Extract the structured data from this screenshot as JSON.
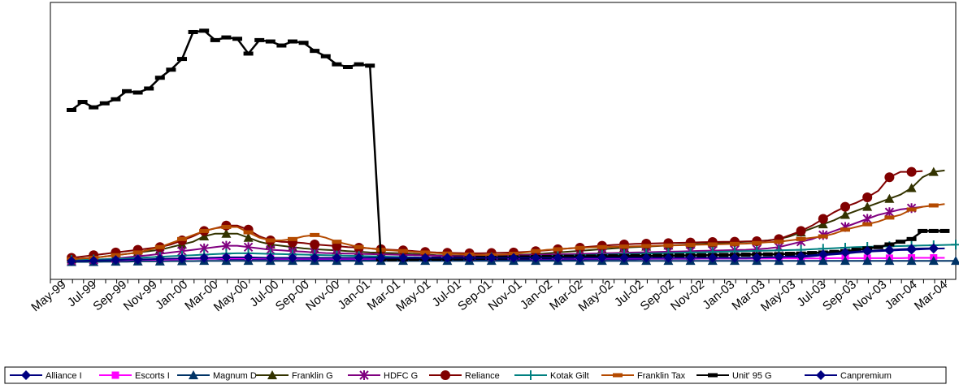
{
  "chart_data": {
    "type": "line",
    "title": "",
    "xlabel": "",
    "ylabel": "",
    "y_axis_visible": false,
    "grid": false,
    "legend_position": "bottom",
    "x_labels": [
      "May-99",
      "Jul-99",
      "Sep-99",
      "Nov-99",
      "Jan-00",
      "Mar-00",
      "May-00",
      "Jul-00",
      "Sep-00",
      "Nov-00",
      "Jan-01",
      "Mar-01",
      "May-01",
      "Jul-01",
      "Sep-01",
      "Nov-01",
      "Jan-02",
      "Mar-02",
      "May-02",
      "Jul-02",
      "Sep-02",
      "Nov-02",
      "Jan-03",
      "Mar-03",
      "May-03",
      "Jul-03",
      "Sep-03",
      "Nov-03",
      "Jan-04",
      "Mar-04"
    ],
    "ylim": [
      0,
      100
    ],
    "series": [
      {
        "name": "Alliance I",
        "color": "#000080",
        "marker": "diamond",
        "start_index": 0,
        "values": [
          7,
          7,
          7,
          7.2,
          7.2,
          7.3,
          7.3,
          7.3,
          7.4,
          7.5,
          7.5,
          7.6,
          7.6,
          7.6,
          7.5,
          7.5,
          7.5,
          7.5,
          7.5,
          7.5,
          7.5,
          7.4,
          7.4,
          7.4,
          7.4,
          7.4,
          7.4,
          7.4,
          7.4,
          7.4,
          7.3,
          7.3,
          7.3,
          7.3,
          7.3,
          7.3,
          7.3,
          7.3,
          7.3,
          7.3,
          7.3,
          7.3,
          7.4,
          7.4,
          7.4,
          7.4,
          7.4,
          7.5,
          7.5,
          7.5,
          7.5,
          7.5,
          7.6,
          7.6,
          7.6,
          7.6,
          7.6,
          7.7,
          7.7,
          7.7,
          7.7,
          7.7,
          7.8,
          7.8,
          7.9,
          8,
          8.3,
          8.6,
          9,
          9.3,
          9.6,
          10,
          10.3,
          10.5,
          10.7,
          10.9,
          11,
          11.2,
          11.4,
          11.5
        ]
      },
      {
        "name": "Escorts I",
        "color": "#ff00ff",
        "marker": "square",
        "start_index": 0,
        "values": [
          6.5,
          6.6,
          6.6,
          6.8,
          6.9,
          7,
          7.1,
          7.2,
          7.3,
          7.4,
          7.5,
          7.6,
          7.7,
          7.7,
          7.8,
          7.8,
          7.8,
          7.8,
          7.8,
          7.7,
          7.7,
          7.7,
          7.7,
          7.7,
          7.7,
          7.7,
          7.7,
          7.7,
          7.8,
          7.8,
          7.8,
          7.8,
          7.8,
          7.8,
          7.8,
          7.8,
          7.8,
          7.8,
          7.8,
          7.8,
          7.8,
          7.8,
          7.8,
          7.8,
          7.8,
          7.8,
          7.8,
          7.8,
          7.8,
          7.8,
          7.8,
          7.8,
          7.8,
          7.8,
          7.8,
          7.8,
          7.8,
          7.8,
          7.8,
          7.8,
          7.8,
          7.8,
          7.8,
          7.8,
          7.8,
          7.8,
          7.8,
          7.8,
          7.8,
          7.9,
          7.9,
          7.9,
          7.9,
          7.9,
          7.9,
          7.9,
          8,
          8,
          8,
          8
        ]
      },
      {
        "name": "Magnum D",
        "color": "#003366",
        "marker": "triangle",
        "start_index": 0,
        "values": [
          6.5,
          6.5,
          6.5,
          6.6,
          6.6,
          6.6,
          6.7,
          6.7,
          6.7,
          6.8,
          6.8,
          6.8,
          6.9,
          6.9,
          6.9,
          6.9,
          6.9,
          6.9,
          6.9,
          6.9,
          6.9,
          6.9,
          6.9,
          6.9,
          6.9,
          6.9,
          6.9,
          6.9,
          6.9,
          6.9,
          6.9,
          6.9,
          6.9,
          6.9,
          6.9,
          6.9,
          6.9,
          6.9,
          6.9,
          6.9,
          6.9,
          6.9,
          6.9,
          6.9,
          6.9,
          6.9,
          6.9,
          6.9,
          6.9,
          6.9,
          6.9,
          6.9,
          6.9,
          6.9,
          6.9,
          6.9,
          6.9,
          6.9,
          6.9,
          6.9,
          6.9,
          6.9,
          6.9,
          6.9,
          6.9,
          6.9,
          6.9,
          6.9,
          6.9,
          6.9,
          6.9,
          6.9,
          6.9,
          6.9,
          6.9,
          6.9,
          6.9,
          6.9,
          6.9,
          6.9,
          6.9
        ]
      },
      {
        "name": "Franklin G",
        "color": "#333300",
        "marker": "triangle",
        "start_index": 0,
        "values": [
          7.5,
          7.8,
          8,
          8.5,
          9,
          9.5,
          10,
          10.5,
          11,
          12,
          13,
          14,
          16,
          17,
          17,
          17,
          15.5,
          14,
          13,
          12.5,
          12,
          11.5,
          11.2,
          11,
          10.8,
          10.5,
          10.3,
          10,
          9.9,
          9.8,
          9.7,
          9.5,
          9.3,
          9,
          8.9,
          8.8,
          8.7,
          8.8,
          8.8,
          8.9,
          9,
          9.2,
          9.4,
          9.7,
          10,
          10.3,
          10.6,
          10.9,
          11.2,
          11.5,
          11.8,
          12,
          12.2,
          12.4,
          12.6,
          12.8,
          13,
          13.2,
          13.4,
          13.6,
          13.8,
          14,
          14.2,
          14.5,
          15,
          16,
          17.5,
          19,
          20.5,
          22,
          24,
          25.5,
          27,
          28.5,
          30,
          31.5,
          34,
          38,
          40,
          40.5
        ]
      },
      {
        "name": "HDFC G",
        "color": "#800080",
        "marker": "asterisk",
        "start_index": 0,
        "values": [
          7,
          7.1,
          7.2,
          7.5,
          7.8,
          8.2,
          8.6,
          9,
          9.5,
          10,
          10.5,
          11,
          11.5,
          12,
          12.5,
          12.5,
          12,
          11.5,
          11,
          10.8,
          10.5,
          10.3,
          10,
          9.8,
          9.7,
          9.6,
          9.5,
          9.4,
          9.3,
          9.2,
          9.1,
          9,
          8.9,
          8.8,
          8.7,
          8.6,
          8.6,
          8.6,
          8.7,
          8.8,
          8.9,
          9,
          9.1,
          9.2,
          9.3,
          9.4,
          9.5,
          9.6,
          9.7,
          9.8,
          9.9,
          10,
          10.1,
          10.2,
          10.3,
          10.4,
          10.5,
          10.6,
          10.7,
          10.8,
          10.9,
          11,
          11.2,
          11.5,
          12,
          13,
          14,
          15,
          16.5,
          18,
          19.5,
          21,
          22.5,
          24,
          25,
          26,
          26.5,
          27
        ]
      },
      {
        "name": "Reliance",
        "color": "#800000",
        "marker": "circle",
        "start_index": 0,
        "values": [
          8,
          8.5,
          9,
          9.5,
          10,
          10.5,
          11,
          11.5,
          12,
          13,
          14.5,
          16,
          18,
          19,
          20,
          20,
          18.5,
          16,
          14.5,
          14,
          13.8,
          13.5,
          13,
          12.7,
          12.4,
          12,
          11.8,
          11.5,
          11.2,
          11,
          10.8,
          10.5,
          10.2,
          10,
          9.9,
          9.8,
          9.7,
          9.7,
          9.8,
          9.9,
          10,
          10.2,
          10.5,
          10.8,
          11.2,
          11.5,
          11.8,
          12.2,
          12.5,
          12.8,
          13,
          13.2,
          13.3,
          13.4,
          13.5,
          13.6,
          13.7,
          13.8,
          13.9,
          14,
          14,
          14.1,
          14.2,
          14.4,
          15,
          16.5,
          18,
          20,
          22.5,
          25,
          27,
          28.5,
          30.5,
          33,
          38,
          40,
          40,
          40.3
        ]
      },
      {
        "name": "Kotak Gilt",
        "color": "#008080",
        "marker": "plus",
        "start_index": 0,
        "values": [
          7.2,
          7.3,
          7.4,
          7.5,
          7.6,
          7.8,
          8,
          8.2,
          8.4,
          8.6,
          8.8,
          9,
          9.2,
          9.4,
          9.6,
          9.7,
          9.7,
          9.6,
          9.5,
          9.4,
          9.3,
          9.2,
          9.1,
          9,
          8.9,
          8.8,
          8.7,
          8.6,
          8.5,
          8.4,
          8.3,
          8.2,
          8.1,
          8,
          8,
          8,
          8,
          8.1,
          8.2,
          8.3,
          8.4,
          8.5,
          8.6,
          8.7,
          8.8,
          8.9,
          9,
          9.1,
          9.2,
          9.3,
          9.4,
          9.5,
          9.6,
          9.7,
          9.8,
          9.9,
          10,
          10.1,
          10.2,
          10.3,
          10.4,
          10.5,
          10.6,
          10.7,
          10.8,
          10.9,
          11,
          11.2,
          11.4,
          11.6,
          11.8,
          12,
          12.1,
          12.2,
          12.3,
          12.4,
          12.5,
          12.6,
          12.7,
          12.8,
          12.9
        ]
      },
      {
        "name": "Franklin Tax",
        "color": "#b44a00",
        "marker": "dash",
        "start_index": 0,
        "values": [
          7.5,
          7.8,
          8,
          8.5,
          9,
          9.5,
          10,
          11,
          12,
          13.5,
          15,
          16.5,
          18,
          19,
          19.5,
          19.5,
          17.5,
          15.5,
          14.5,
          14.5,
          15,
          16,
          16.5,
          15.5,
          14,
          13,
          12,
          11.5,
          11,
          10.8,
          10.5,
          10.2,
          10,
          9.8,
          9.6,
          9.4,
          9.2,
          9.1,
          9,
          9.2,
          9.5,
          10,
          10.5,
          11,
          11.2,
          11.5,
          11.7,
          11.9,
          12,
          12.1,
          12.2,
          12.3,
          12.4,
          12.5,
          12.6,
          12.7,
          12.8,
          12.9,
          13,
          13.1,
          13.2,
          13.3,
          13.5,
          13.8,
          14,
          14.5,
          15,
          15.5,
          16,
          17,
          18.5,
          19.5,
          20.5,
          21.5,
          23,
          24,
          26,
          27,
          27.5,
          28
        ]
      },
      {
        "name": "Unit' 95 G",
        "color": "#000000",
        "marker": "dash",
        "start_index": 0,
        "values": [
          63,
          66,
          64,
          65.5,
          67,
          70,
          69.5,
          71,
          75,
          78,
          82,
          92,
          92.5,
          89,
          90,
          89.5,
          84,
          89,
          88.5,
          87,
          88.5,
          88,
          85,
          83,
          80,
          79,
          80,
          79.5,
          7.5,
          7.5,
          7.5,
          7.6,
          7.6,
          7.7,
          7.7,
          7.8,
          7.9,
          8,
          8,
          8.1,
          8.2,
          8.2,
          8.3,
          8.3,
          8.4,
          8.4,
          8.5,
          8.5,
          8.6,
          8.6,
          8.7,
          8.7,
          8.7,
          8.8,
          8.8,
          8.9,
          8.9,
          9,
          9,
          9.1,
          9.1,
          9.2,
          9.3,
          9.3,
          9.4,
          9.5,
          9.6,
          9.8,
          10,
          10.2,
          10.5,
          11,
          11.5,
          12,
          13,
          14,
          15,
          18,
          18,
          18
        ]
      },
      {
        "name": "Canpremium",
        "color": "#000080",
        "marker": "diamond",
        "start_index": 0,
        "values": [
          6.8,
          6.9,
          7,
          7.1,
          7.2,
          7.3,
          7.4,
          7.5,
          7.6,
          7.7,
          7.8,
          7.9,
          8,
          8.1,
          8.2,
          8.2,
          8.2,
          8.1,
          8,
          8,
          8,
          8,
          8,
          8,
          8,
          8,
          8,
          8,
          8,
          8,
          8,
          8,
          8,
          8,
          8,
          8,
          8,
          8,
          8,
          8,
          8,
          8,
          8,
          8,
          8,
          8,
          8,
          8,
          8,
          8,
          8,
          8,
          8,
          8,
          8,
          8,
          8,
          8,
          8,
          8,
          8,
          8,
          8.1,
          8.2,
          8.3,
          8.5,
          8.7,
          9,
          9.3,
          9.6,
          10,
          10.3,
          10.6,
          10.8,
          11,
          11.2,
          11.4,
          11.5,
          11.6
        ]
      }
    ]
  }
}
